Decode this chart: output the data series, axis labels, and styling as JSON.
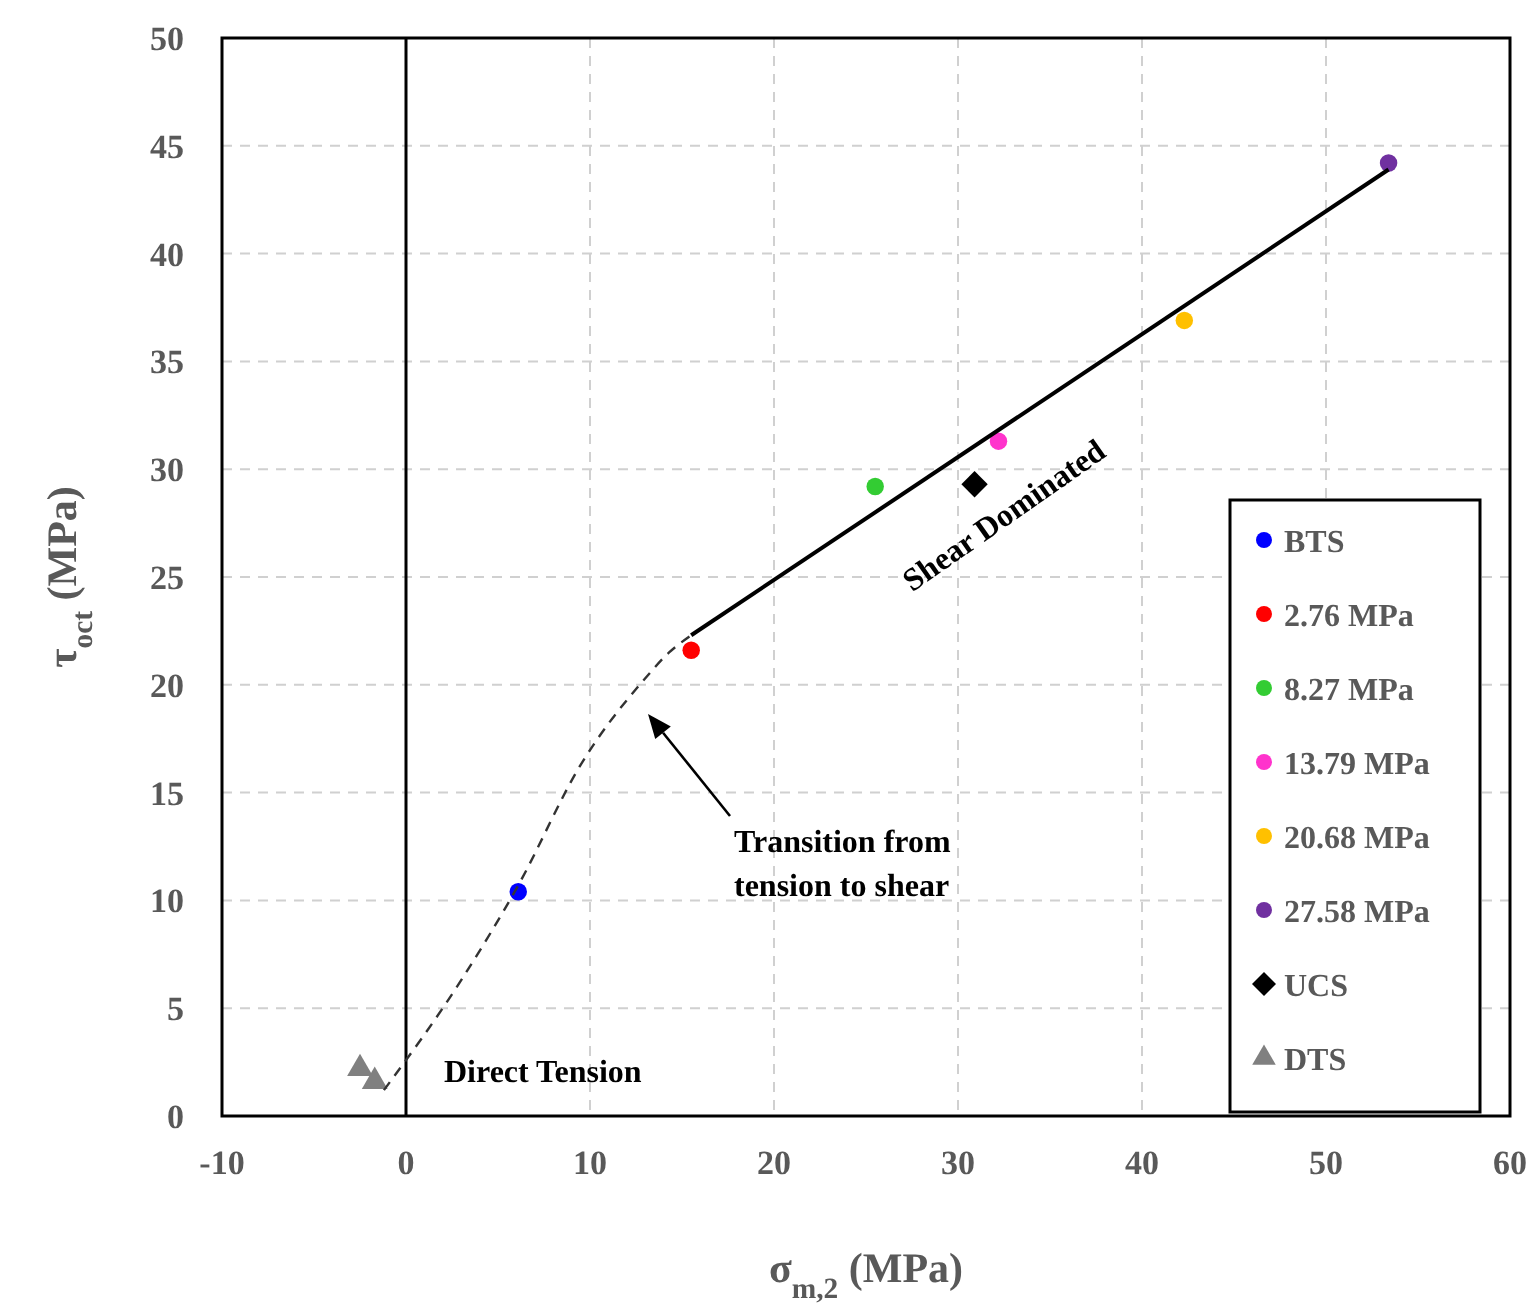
{
  "chart_data": {
    "type": "scatter",
    "xlabel": "σ$_{m,2}$ (MPa)",
    "ylabel": "τ$_{oct}$ (MPa)",
    "xlim": [
      -10,
      60
    ],
    "xticks": [
      -10,
      0,
      10,
      20,
      30,
      40,
      50,
      60
    ],
    "ylim": [
      0,
      50
    ],
    "yticks": [
      0,
      5,
      10,
      15,
      20,
      25,
      30,
      35,
      40,
      45,
      50
    ],
    "grid": true,
    "legend": "right",
    "ref_lines": [
      {
        "axis": "x",
        "value": 0,
        "color": "#000000",
        "line_style": "solid"
      }
    ],
    "annotations": [
      "Shear Dominated",
      "Transition from tension to shear",
      "Direct Tension"
    ],
    "series": [
      {
        "name": "BTS",
        "color": "#0000ff",
        "marker": "circle",
        "x": [
          6.1
        ],
        "values": [
          10.4
        ]
      },
      {
        "name": "2.76 MPa",
        "color": "#ff0000",
        "marker": "circle",
        "x": [
          15.5
        ],
        "values": [
          21.6
        ]
      },
      {
        "name": "8.27 MPa",
        "color": "#33cc33",
        "marker": "circle",
        "x": [
          25.5
        ],
        "values": [
          29.2
        ]
      },
      {
        "name": "13.79 MPa",
        "color": "#ff33cc",
        "marker": "circle",
        "x": [
          32.2
        ],
        "values": [
          31.3
        ]
      },
      {
        "name": "20.68 MPa",
        "color": "#ffc000",
        "marker": "circle",
        "x": [
          42.3
        ],
        "values": [
          36.9
        ]
      },
      {
        "name": "27.58 MPa",
        "color": "#7030a0",
        "marker": "circle",
        "x": [
          53.4
        ],
        "values": [
          44.2
        ]
      },
      {
        "name": "UCS",
        "color": "#000000",
        "marker": "diamond",
        "x": [
          30.9
        ],
        "values": [
          29.3
        ]
      },
      {
        "name": "DTS",
        "color": "#808080",
        "marker": "triangle",
        "x": [
          -2.5,
          -1.7
        ],
        "values": [
          2.2,
          1.6
        ]
      },
      {
        "type": "line",
        "color": "#000000",
        "line_style": "solid",
        "marker": "none",
        "x": [
          15.5,
          53.4
        ],
        "values": [
          22.3,
          43.9
        ]
      },
      {
        "type": "line",
        "color": "#333333",
        "line_style": "dashed",
        "marker": "none",
        "x": [
          -1.2,
          3,
          6.1,
          9.5,
          12.9,
          14.3,
          15.5
        ],
        "values": [
          1.2,
          6.3,
          10.7,
          16.3,
          20.2,
          21.5,
          22.3
        ]
      }
    ]
  }
}
